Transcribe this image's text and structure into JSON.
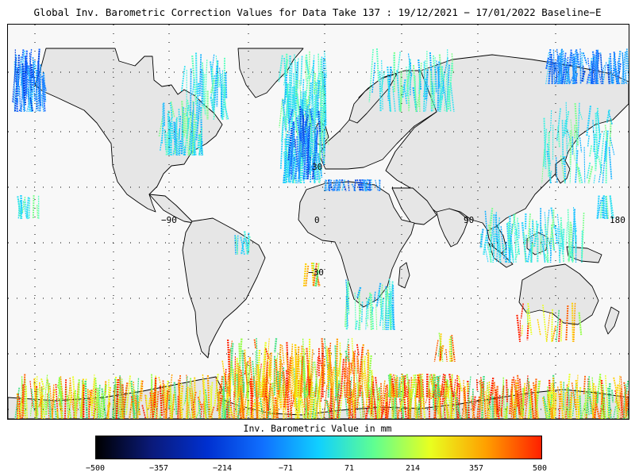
{
  "title": "Global Inv. Barometric Correction Values for Data Take 137 : 19/12/2021 − 17/01/2022 Baseline−E",
  "map": {
    "lon_labels": [
      "−90",
      "0",
      "90",
      "180"
    ],
    "lat_labels": [
      "30",
      "−30"
    ],
    "land_color": "#e6e6e6",
    "coast_color": "#000000",
    "grid": "dotted"
  },
  "colorbar": {
    "title": "Inv. Barometric Value in mm",
    "ticks": [
      "−500",
      "−357",
      "−214",
      "−71",
      "71",
      "214",
      "357",
      "500"
    ],
    "min": -500,
    "max": 500,
    "colors": [
      "#000000",
      "#0a1a7a",
      "#0030d0",
      "#1070ff",
      "#10d0ff",
      "#60ff90",
      "#e8ff20",
      "#ffa000",
      "#ff2000"
    ]
  }
}
